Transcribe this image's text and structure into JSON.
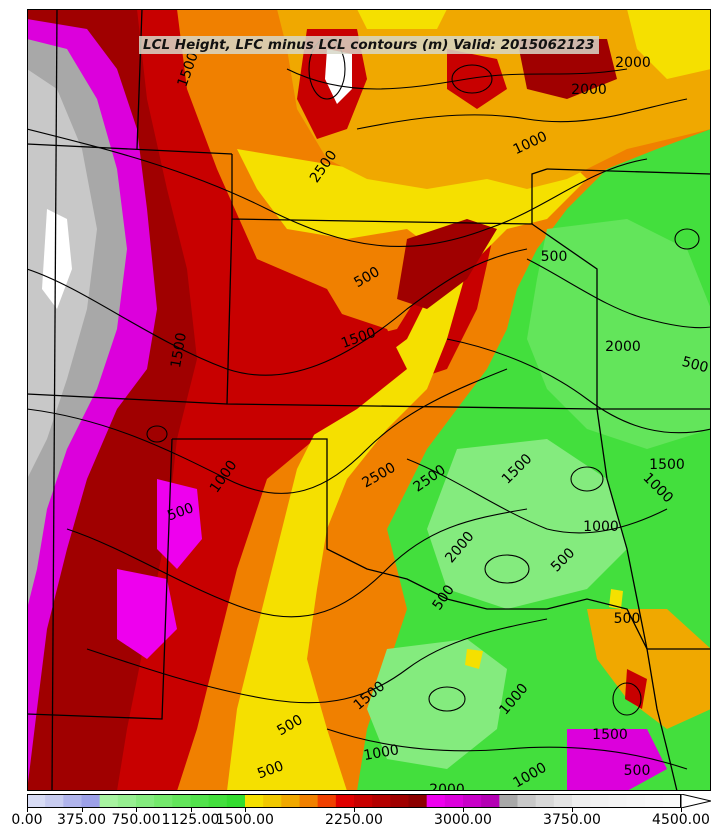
{
  "map": {
    "title": "LCL Height, LFC minus LCL contours (m) Valid: 2015062123"
  },
  "contour_labels": [
    "1500",
    "2500",
    "2000",
    "1000",
    "2000",
    "500",
    "1500",
    "500",
    "2000",
    "500",
    "1500",
    "1500",
    "2500",
    "2500",
    "1500",
    "1000",
    "500",
    "1000",
    "500",
    "2000",
    "1000",
    "500",
    "1500",
    "1000",
    "500",
    "500",
    "1000",
    "2000",
    "1500",
    "500",
    "500",
    "1000"
  ],
  "colorbar": {
    "levels": [
      0,
      125,
      250,
      375,
      500,
      625,
      750,
      875,
      1000,
      1125,
      1250,
      1375,
      1500,
      1625,
      1750,
      1875,
      2000,
      2125,
      2250,
      2375,
      2500,
      2625,
      2750,
      2875,
      3000,
      3125,
      3250,
      3375,
      3500,
      3625,
      3750,
      3875,
      4000,
      4125,
      4250,
      4375,
      4500
    ],
    "colors": [
      "#d8dcf5",
      "#c8ccf0",
      "#b0b4ec",
      "#9ca0e8",
      "#a7f3a0",
      "#96ef90",
      "#84eb7e",
      "#74e96c",
      "#63e55b",
      "#52e24c",
      "#43df3d",
      "#33dc2f",
      "#f5e000",
      "#f0c800",
      "#f0a800",
      "#f08000",
      "#f04000",
      "#e00000",
      "#c80000",
      "#b40000",
      "#a00000",
      "#8c0000",
      "#ee00ee",
      "#dc00dc",
      "#c800c8",
      "#b400b4",
      "#a8a8a8",
      "#c8c8c8",
      "#d8d8d8",
      "#e4e4e4",
      "#eeeeee",
      "#f2f2f2",
      "#f4f4f4",
      "#f6f6f6",
      "#f8f8f8",
      "#fafafa"
    ],
    "tick_labels": [
      "0.00",
      "375.00",
      "750.00",
      "1125.00",
      "1500.00",
      "2250.00",
      "3000.00",
      "3750.00",
      "4500.00"
    ]
  }
}
